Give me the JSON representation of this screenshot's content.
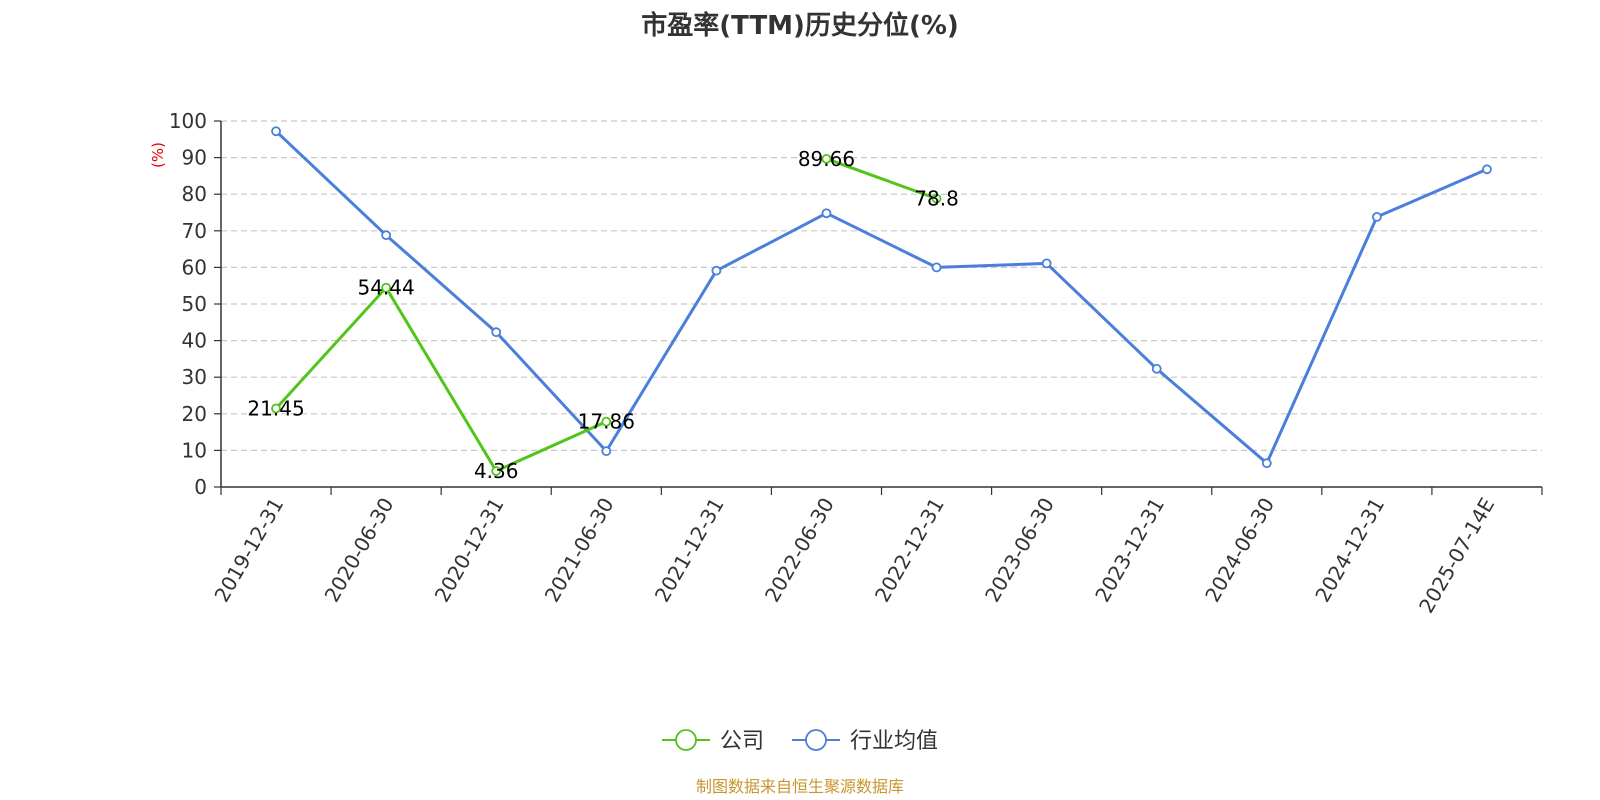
{
  "chart_data": {
    "type": "line",
    "title": "市盈率(TTM)历史分位(%)",
    "y_unit_label": "(%)",
    "y_unit_color": "#e60000",
    "ylim": [
      0,
      100
    ],
    "yticks": [
      "0",
      "10",
      "20",
      "30",
      "40",
      "50",
      "60",
      "70",
      "80",
      "90",
      "100"
    ],
    "grid": true,
    "legend_position": "bottom-center",
    "categories": [
      "2019-12-31",
      "2020-06-30",
      "2020-12-31",
      "2021-06-30",
      "2021-12-31",
      "2022-06-30",
      "2022-12-31",
      "2023-06-30",
      "2023-12-31",
      "2024-06-30",
      "2024-12-31",
      "2025-07-14E"
    ],
    "series": [
      {
        "name": "公司",
        "color": "#52c41a",
        "values": [
          21.45,
          54.44,
          4.36,
          17.86,
          null,
          89.66,
          78.8,
          null,
          null,
          null,
          null,
          null
        ],
        "labels": [
          "21.45",
          "54.44",
          "4.36",
          "17.86",
          "",
          "89.66",
          "78.8",
          "",
          "",
          "",
          "",
          ""
        ]
      },
      {
        "name": "行业均值",
        "color": "#4a7fdb",
        "values": [
          97.2,
          68.8,
          42.3,
          9.8,
          59.1,
          74.8,
          60.0,
          61.1,
          32.3,
          6.5,
          73.8,
          86.8
        ]
      }
    ]
  },
  "footer": {
    "source": "制图数据来自恒生聚源数据库",
    "source_color": "#c8962e"
  }
}
